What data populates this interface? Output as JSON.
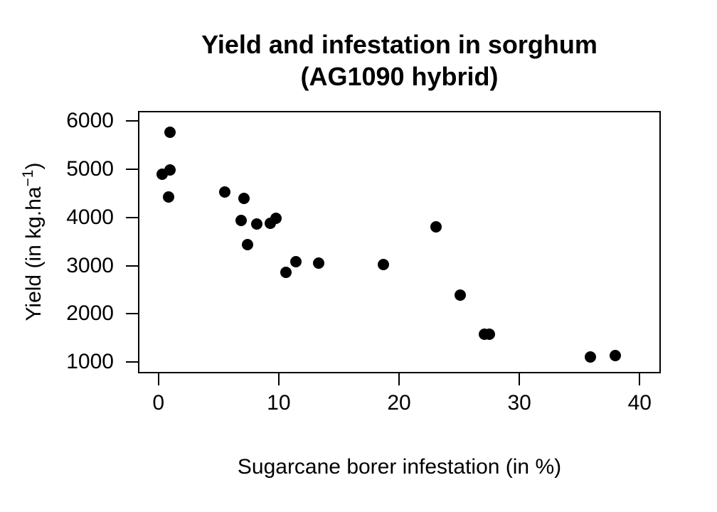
{
  "title": {
    "line1": "Yield and infestation in sorghum",
    "line2": "(AG1090 hybrid)"
  },
  "axes": {
    "x": {
      "label": "Sugarcane borer infestation (in %)"
    },
    "y": {
      "label_prefix": "Yield (in kg.ha",
      "label_sup": "−1",
      "label_suffix": ")"
    }
  },
  "chart_data": {
    "type": "scatter",
    "title": "Yield and infestation in sorghum (AG1090 hybrid)",
    "xlabel": "Sugarcane borer infestation (in %)",
    "ylabel": "Yield (in kg.ha^-1)",
    "x_ticks": [
      0,
      10,
      20,
      30,
      40
    ],
    "y_ticks": [
      1000,
      2000,
      3000,
      4000,
      5000,
      6000
    ],
    "xlim": [
      -1.6,
      41.7
    ],
    "ylim": [
      780,
      6200
    ],
    "grid": false,
    "legend": null,
    "marker": {
      "shape": "filled-circle",
      "color": "#000000",
      "radius_px": 8
    },
    "points": [
      {
        "x": 0.3,
        "y": 4900
      },
      {
        "x": 0.85,
        "y": 4420
      },
      {
        "x": 0.95,
        "y": 4990
      },
      {
        "x": 0.95,
        "y": 5770
      },
      {
        "x": 5.5,
        "y": 4530
      },
      {
        "x": 6.9,
        "y": 3940
      },
      {
        "x": 7.1,
        "y": 4390
      },
      {
        "x": 7.4,
        "y": 3440
      },
      {
        "x": 8.2,
        "y": 3860
      },
      {
        "x": 9.3,
        "y": 3880
      },
      {
        "x": 9.8,
        "y": 3990
      },
      {
        "x": 10.6,
        "y": 2860
      },
      {
        "x": 11.4,
        "y": 3090
      },
      {
        "x": 13.3,
        "y": 3050
      },
      {
        "x": 18.7,
        "y": 3030
      },
      {
        "x": 23.1,
        "y": 3810
      },
      {
        "x": 25.1,
        "y": 2390
      },
      {
        "x": 27.1,
        "y": 1580
      },
      {
        "x": 27.5,
        "y": 1575
      },
      {
        "x": 35.9,
        "y": 1100
      },
      {
        "x": 38.0,
        "y": 1130
      }
    ]
  }
}
